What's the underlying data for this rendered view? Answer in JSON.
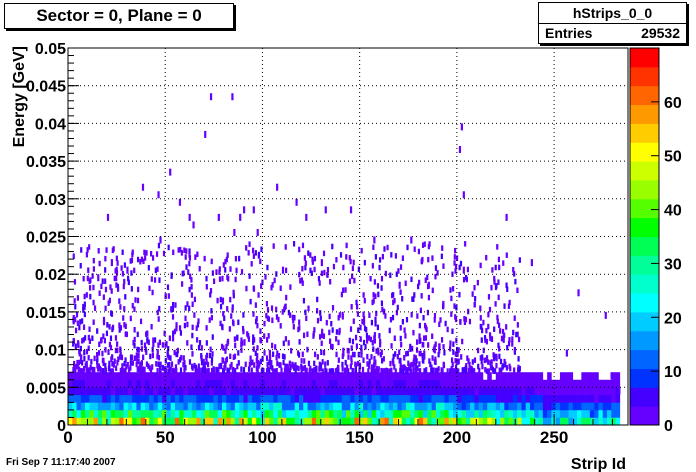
{
  "chart_data": {
    "type": "heatmap",
    "title": "Sector = 0, Plane = 0",
    "xlabel": "Strip Id",
    "ylabel": "Energy [GeV]",
    "xlim": [
      0,
      288
    ],
    "ylim": [
      0,
      0.05
    ],
    "x_ticks": [
      "0",
      "50",
      "100",
      "150",
      "200",
      "250"
    ],
    "y_ticks": [
      "0",
      "0.005",
      "0.01",
      "0.015",
      "0.02",
      "0.025",
      "0.03",
      "0.035",
      "0.04",
      "0.045",
      "0.05"
    ],
    "z_ticks": [
      "0",
      "10",
      "20",
      "30",
      "40",
      "50",
      "60"
    ],
    "zlim": [
      0,
      70
    ],
    "grid": true,
    "rows_energy_lower_edges": [
      0,
      0.001,
      0.002,
      0.003,
      0.004,
      0.005,
      0.006
    ],
    "typical_row_counts": [
      45,
      30,
      18,
      10,
      5,
      3,
      2
    ],
    "sparse_points": [
      [
        73,
        0.0435
      ],
      [
        84,
        0.0435
      ],
      [
        202,
        0.0395
      ],
      [
        201,
        0.0365
      ],
      [
        70,
        0.0385
      ],
      [
        52,
        0.0335
      ],
      [
        107,
        0.0315
      ],
      [
        38,
        0.0315
      ],
      [
        203,
        0.0305
      ],
      [
        46,
        0.0305
      ],
      [
        57,
        0.0295
      ],
      [
        117,
        0.0295
      ],
      [
        95,
        0.0285
      ],
      [
        132,
        0.0285
      ],
      [
        90,
        0.0285
      ],
      [
        145,
        0.0285
      ],
      [
        20,
        0.0275
      ],
      [
        62,
        0.0275
      ],
      [
        77,
        0.0275
      ],
      [
        122,
        0.0275
      ],
      [
        225,
        0.0275
      ],
      [
        88,
        0.0275
      ],
      [
        64,
        0.0265
      ],
      [
        97,
        0.0255
      ],
      [
        85,
        0.0255
      ],
      [
        47,
        0.0245
      ],
      [
        157,
        0.0245
      ],
      [
        176,
        0.0245
      ],
      [
        22,
        0.0215
      ],
      [
        130,
        0.0215
      ],
      [
        238,
        0.0215
      ],
      [
        30,
        0.0205
      ],
      [
        110,
        0.0205
      ],
      [
        203,
        0.0205
      ],
      [
        15,
        0.0195
      ],
      [
        185,
        0.0185
      ],
      [
        170,
        0.0185
      ],
      [
        262,
        0.0175
      ],
      [
        276,
        0.0145
      ],
      [
        256,
        0.0095
      ],
      [
        283,
        0.0045
      ],
      [
        279,
        0.0065
      ]
    ],
    "stats": {
      "name": "hStrips_0_0",
      "entries_label": "Entries",
      "entries": "29532"
    }
  },
  "footer": {
    "timestamp": "Fri Sep  7 11:17:40 2007"
  }
}
